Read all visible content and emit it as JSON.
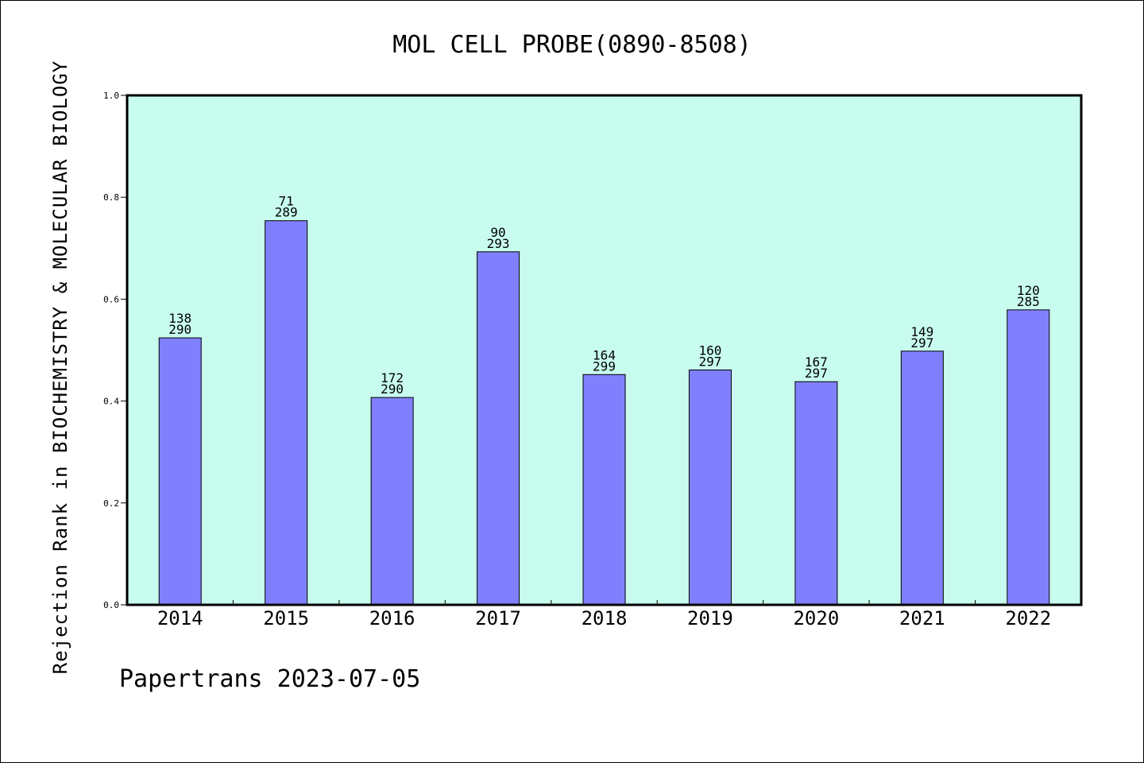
{
  "chart_data": {
    "type": "bar",
    "title": "MOL CELL PROBE(0890-8508)",
    "xlabel": "",
    "ylabel": "Rejection Rank in BIOCHEMISTRY & MOLECULAR BIOLOGY",
    "categories": [
      "2014",
      "2015",
      "2016",
      "2017",
      "2018",
      "2019",
      "2020",
      "2021",
      "2022"
    ],
    "values": [
      0.524,
      0.754,
      0.407,
      0.693,
      0.452,
      0.461,
      0.438,
      0.498,
      0.579
    ],
    "labels_rank": [
      "138",
      "71",
      "172",
      "90",
      "164",
      "160",
      "167",
      "149",
      "120"
    ],
    "labels_total": [
      "290",
      "289",
      "290",
      "293",
      "299",
      "297",
      "297",
      "297",
      "285"
    ],
    "ylim": [
      0,
      1.0
    ],
    "yticks": [
      "0.0",
      "0.2",
      "0.4",
      "0.6",
      "0.8",
      "1.0"
    ],
    "grid": false,
    "plot_background": "#c8fcee",
    "bar_color": "#8080ff"
  },
  "footer": "Papertrans 2023-07-05"
}
